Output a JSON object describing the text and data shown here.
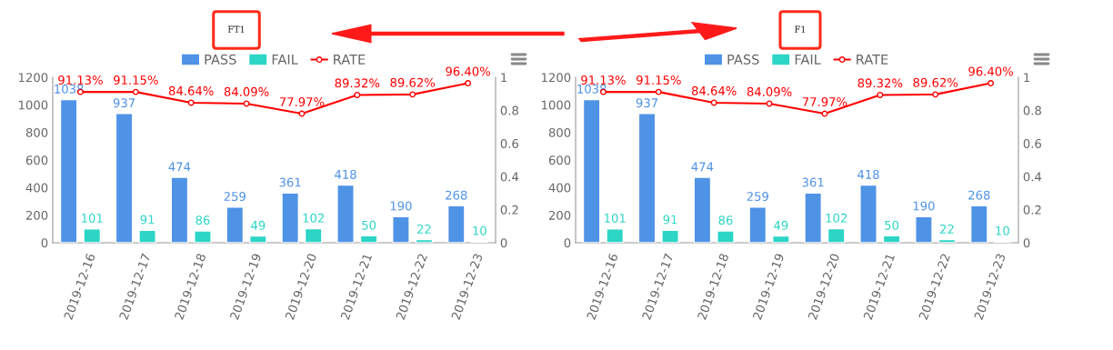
{
  "chart_data": [
    {
      "type": "bar",
      "title": "FT1",
      "categories": [
        "2019-12-16",
        "2019-12-17",
        "2019-12-18",
        "2019-12-19",
        "2019-12-20",
        "2019-12-21",
        "2019-12-22",
        "2019-12-23"
      ],
      "series": [
        {
          "name": "PASS",
          "color": "#4f93e6",
          "values": [
            1038,
            937,
            474,
            259,
            361,
            418,
            190,
            268
          ],
          "value_labels": [
            "1038",
            "937",
            "474",
            "259",
            "361",
            "418",
            "190",
            "268"
          ]
        },
        {
          "name": "FAIL",
          "color": "#2dd5c6",
          "values": [
            101,
            91,
            86,
            49,
            102,
            50,
            22,
            10
          ],
          "value_labels": [
            "101",
            "91",
            "86",
            "49",
            "102",
            "50",
            "22",
            "10"
          ]
        },
        {
          "name": "RATE",
          "type": "line",
          "axis": "y2",
          "color": "#ff0000",
          "values": [
            0.9113,
            0.9115,
            0.8464,
            0.8409,
            0.7797,
            0.8932,
            0.8962,
            0.964
          ],
          "value_labels": [
            "91.13%",
            "91.15%",
            "84.64%",
            "84.09%",
            "77.97%",
            "89.32%",
            "89.62%",
            "96.40%"
          ]
        }
      ],
      "ylim": [
        0,
        1200
      ],
      "yticks": [
        0,
        200,
        400,
        600,
        800,
        1000,
        1200
      ],
      "y2lim": [
        0,
        1
      ],
      "y2ticks": [
        0,
        0.2,
        0.4,
        0.6,
        0.8,
        1
      ],
      "marker": "circle",
      "legend": "top",
      "grid": false
    },
    {
      "type": "bar",
      "title": "F1",
      "categories": [
        "2019-12-16",
        "2019-12-17",
        "2019-12-18",
        "2019-12-19",
        "2019-12-20",
        "2019-12-21",
        "2019-12-22",
        "2019-12-23"
      ],
      "series": [
        {
          "name": "PASS",
          "color": "#4f93e6",
          "values": [
            1038,
            937,
            474,
            259,
            361,
            418,
            190,
            268
          ],
          "value_labels": [
            "1038",
            "937",
            "474",
            "259",
            "361",
            "418",
            "190",
            "268"
          ]
        },
        {
          "name": "FAIL",
          "color": "#2dd5c6",
          "values": [
            101,
            91,
            86,
            49,
            102,
            50,
            22,
            10
          ],
          "value_labels": [
            "101",
            "91",
            "86",
            "49",
            "102",
            "50",
            "22",
            "10"
          ]
        },
        {
          "name": "RATE",
          "type": "line",
          "axis": "y2",
          "color": "#ff0000",
          "values": [
            0.9113,
            0.9115,
            0.8464,
            0.8409,
            0.7797,
            0.8932,
            0.8962,
            0.964
          ],
          "value_labels": [
            "91.13%",
            "91.15%",
            "84.64%",
            "84.09%",
            "77.97%",
            "89.32%",
            "89.62%",
            "96.40%"
          ]
        }
      ],
      "ylim": [
        0,
        1200
      ],
      "yticks": [
        0,
        200,
        400,
        600,
        800,
        1000,
        1200
      ],
      "y2lim": [
        0,
        1
      ],
      "y2ticks": [
        0,
        0.2,
        0.4,
        0.6,
        0.8,
        1
      ],
      "marker": "circle",
      "legend": "top",
      "grid": false
    }
  ]
}
